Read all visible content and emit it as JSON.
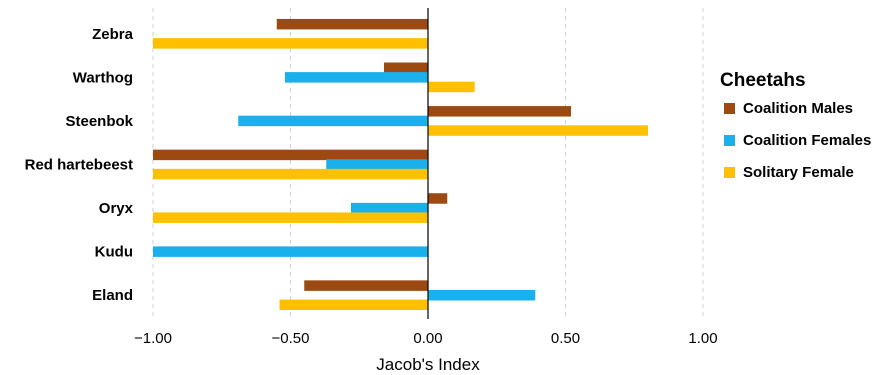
{
  "chart_data": {
    "type": "bar",
    "orientation": "horizontal",
    "categories": [
      "Zebra",
      "Warthog",
      "Steenbok",
      "Red hartebeest",
      "Oryx",
      "Kudu",
      "Eland"
    ],
    "series": [
      {
        "name": "Coalition Males",
        "color": "#9c4a12",
        "values": [
          -0.55,
          -0.16,
          0.52,
          -1.0,
          0.07,
          null,
          -0.45
        ]
      },
      {
        "name": "Coalition Females",
        "color": "#1ab0ec",
        "values": [
          null,
          -0.52,
          -0.69,
          -0.37,
          -0.28,
          -1.0,
          0.39
        ]
      },
      {
        "name": "Solitary Female",
        "color": "#ffc000",
        "values": [
          -1.0,
          0.17,
          0.8,
          -1.0,
          -1.0,
          null,
          -0.54
        ]
      }
    ],
    "xlabel": "Jacob's Index",
    "xlim": [
      -1.0,
      1.0
    ],
    "xticks": [
      -1.0,
      -0.5,
      0.0,
      0.5,
      1.0
    ],
    "xtick_labels": [
      "−1.00",
      "−0.50",
      "0.00",
      "0.50",
      "1.00"
    ],
    "grid": "vertical-dashed",
    "legend": {
      "title": "Cheetahs",
      "placement": "right"
    }
  }
}
